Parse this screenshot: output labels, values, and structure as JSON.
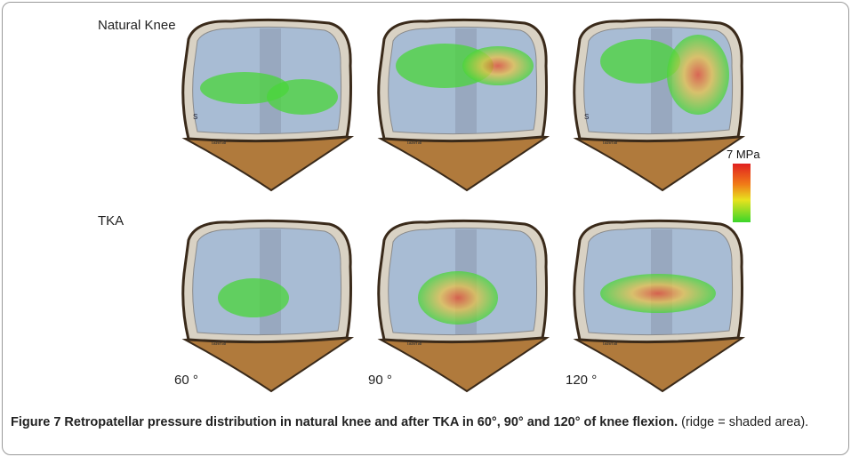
{
  "figure": {
    "row_labels": [
      "Natural Knee",
      "TKA"
    ],
    "angle_labels": [
      "60 °",
      "90 °",
      "120 °"
    ],
    "scale": {
      "max_label": "7 MPa",
      "colors": [
        "#e02020",
        "#f07a18",
        "#e8e21e",
        "#3ad62a"
      ]
    },
    "panel_marks": {
      "side_letter": "S",
      "lateral_label": "lateral"
    },
    "colors": {
      "patella_bone": "#b07a3c",
      "patella_rim": "#3a2a1a",
      "cartilage": "#a8bcd4",
      "pressure_low": "#4ad63a",
      "pressure_high": "#e84a2a"
    }
  },
  "caption": {
    "lead": "Figure 7 Retropatellar pressure distribution in natural knee and after TKA in 60°, 90° and 120° of knee flexion.",
    "rest": "(ridge = shaded area)."
  }
}
